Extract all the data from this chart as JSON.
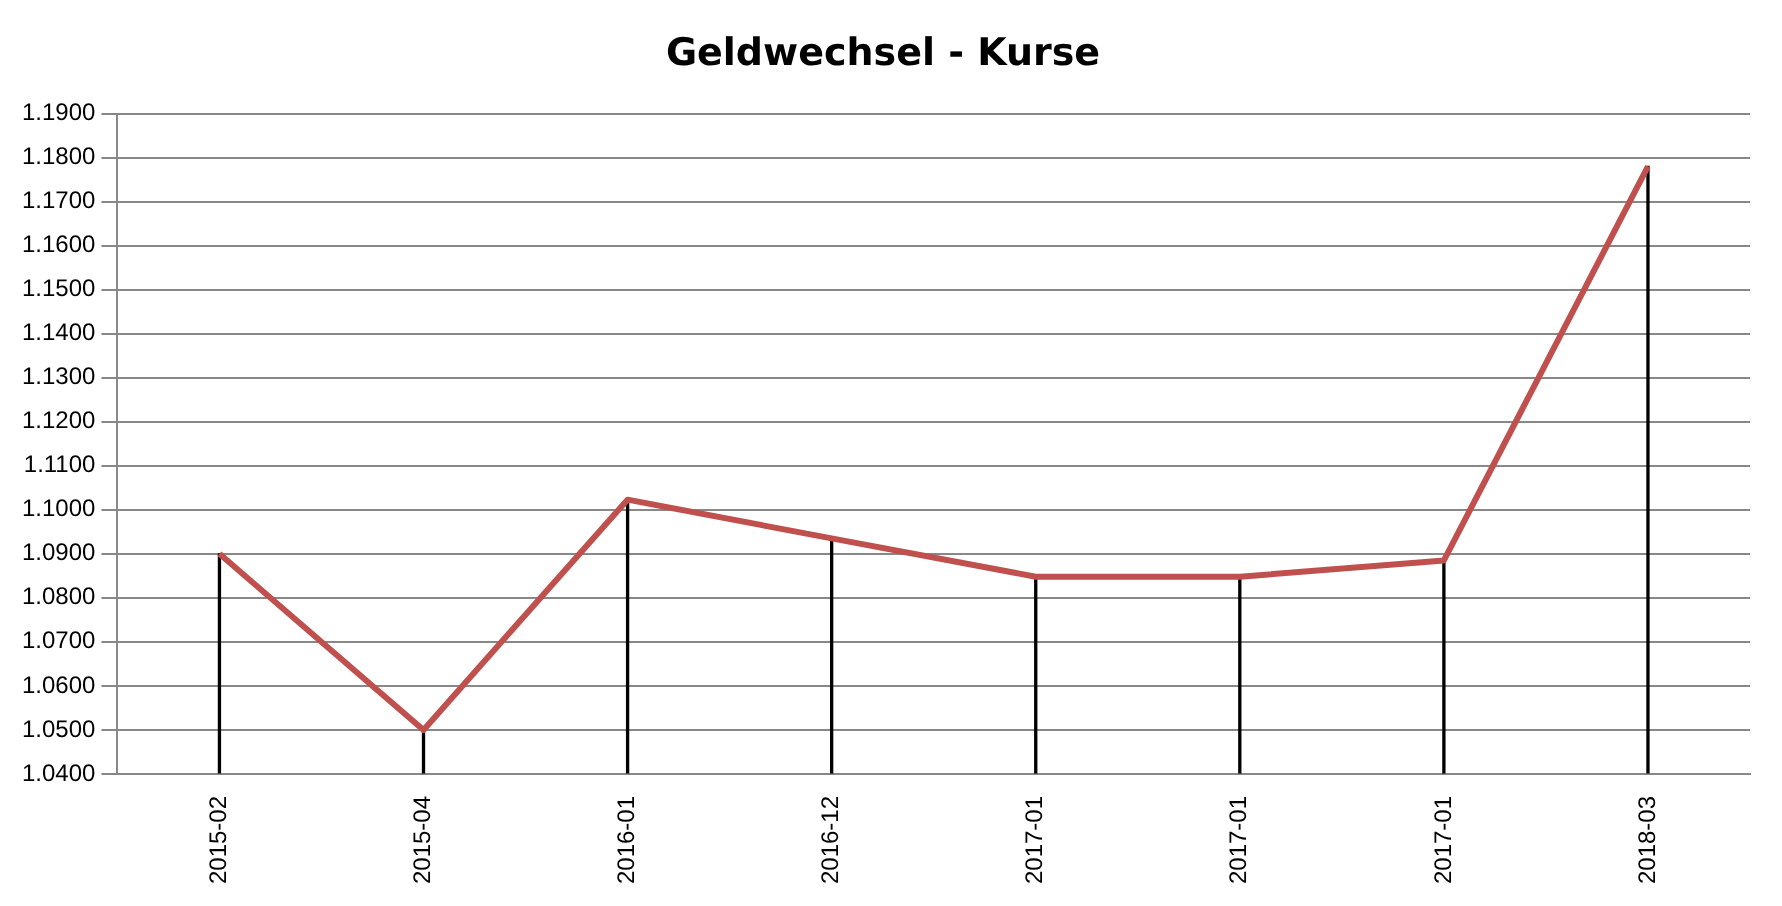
{
  "chart_data": {
    "type": "line",
    "title": "Geldwechsel - Kurse",
    "categories": [
      "2015-02",
      "2015-04",
      "2016-01",
      "2016-12",
      "2017-01",
      "2017-01",
      "2017-01",
      "2018-03"
    ],
    "series": [
      {
        "color": "#c0504d",
        "values": [
          1.09,
          1.05,
          1.1023,
          1.0935,
          1.0848,
          1.0848,
          1.0885,
          1.178
        ]
      },
      {
        "type": "bar",
        "color": "#000000",
        "values": [
          1.09,
          1.05,
          1.1023,
          1.0935,
          1.0848,
          1.0848,
          1.0885,
          1.178
        ]
      }
    ],
    "ylim": [
      1.04,
      1.19
    ],
    "yticks": [
      {
        "value": 1.04,
        "label": "1.0400"
      },
      {
        "value": 1.05,
        "label": "1.0500"
      },
      {
        "value": 1.06,
        "label": "1.0600"
      },
      {
        "value": 1.07,
        "label": "1.0700"
      },
      {
        "value": 1.08,
        "label": "1.0800"
      },
      {
        "value": 1.09,
        "label": "1.0900"
      },
      {
        "value": 1.1,
        "label": "1.1000"
      },
      {
        "value": 1.11,
        "label": "1.1100"
      },
      {
        "value": 1.12,
        "label": "1.1200"
      },
      {
        "value": 1.13,
        "label": "1.1300"
      },
      {
        "value": 1.14,
        "label": "1.1400"
      },
      {
        "value": 1.15,
        "label": "1.1500"
      },
      {
        "value": 1.16,
        "label": "1.1600"
      },
      {
        "value": 1.17,
        "label": "1.1700"
      },
      {
        "value": 1.18,
        "label": "1.1800"
      },
      {
        "value": 1.19,
        "label": "1.1900"
      }
    ],
    "grid": "y",
    "legend": false,
    "marker": "none",
    "line_style": "solid"
  }
}
